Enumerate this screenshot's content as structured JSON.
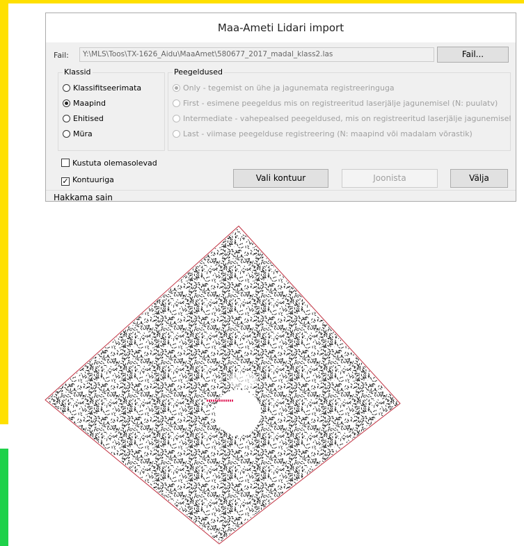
{
  "dialog": {
    "title": "Maa-Ameti Lidari import",
    "file": {
      "label": "Fail:",
      "path": "Y:\\MLS\\Toos\\TX-1626_Aidu\\MaaAmet\\580677_2017_madal_klass2.las",
      "button": "Fail..."
    },
    "klassid": {
      "title": "Klassid",
      "options": [
        {
          "label": "Klassifitseerimata",
          "checked": false
        },
        {
          "label": "Maapind",
          "checked": true
        },
        {
          "label": "Ehitised",
          "checked": false
        },
        {
          "label": "Müra",
          "checked": false
        }
      ]
    },
    "peegeldused": {
      "title": "Peegeldused",
      "enabled": false,
      "options": [
        {
          "label": "Only - tegemist on ühe ja jagunemata registreeringuga",
          "checked": true
        },
        {
          "label": "First - esimene peegeldus mis on registreeritud laserjälje jagunemisel (N: puulatv)",
          "checked": false
        },
        {
          "label": "Intermediate - vahepealsed peegeldused, mis on registreeritud laserjälje jagunemisel",
          "checked": false
        },
        {
          "label": "Last - viimase peegelduse registreering (N: maapind või madalam võrastik)",
          "checked": false
        }
      ]
    },
    "checkboxes": [
      {
        "label": "Kustuta olemasolevad",
        "checked": false
      },
      {
        "label": "Kontuuriga",
        "checked": true
      }
    ],
    "buttons": [
      {
        "label": "Vali kontuur",
        "enabled": true
      },
      {
        "label": "Joonista",
        "enabled": false
      },
      {
        "label": "Välja",
        "enabled": true
      }
    ],
    "status": "Hakkama sain"
  }
}
